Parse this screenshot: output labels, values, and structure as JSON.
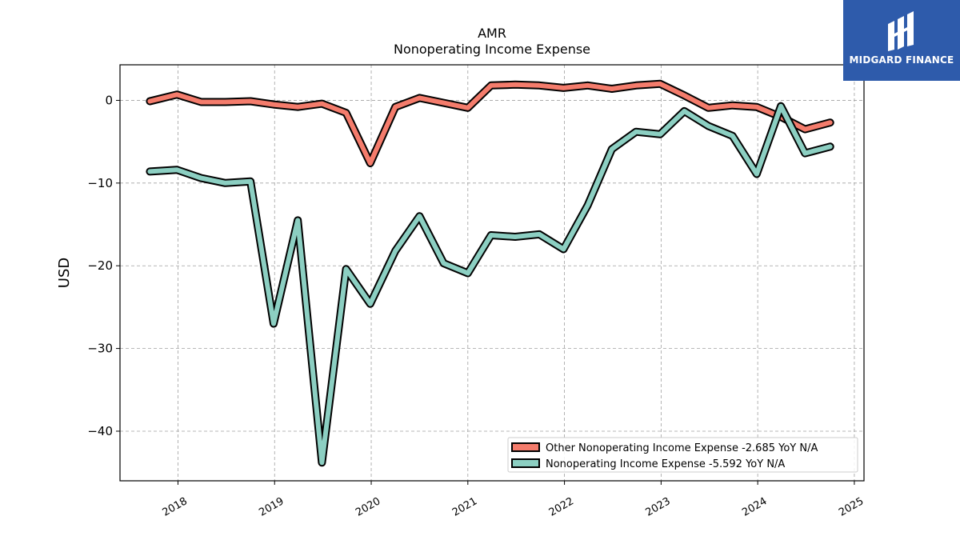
{
  "brand": {
    "name": "MIDGARD FINANCE",
    "bg": "#2e5bab"
  },
  "chart_data": {
    "type": "line",
    "title": "AMR",
    "subtitle": "Nonoperating Income Expense",
    "ylabel": "USD",
    "xlabel": "",
    "ylim": [
      -46,
      4.3
    ],
    "xlim": [
      2017.4,
      2025.1
    ],
    "yticks": [
      0,
      -10,
      -20,
      -30,
      -40
    ],
    "ytick_labels": [
      "0",
      "−10",
      "−20",
      "−30",
      "−40"
    ],
    "xticks": [
      2018,
      2019,
      2020,
      2021,
      2022,
      2023,
      2024,
      2025
    ],
    "xtick_labels": [
      "2018",
      "2019",
      "2020",
      "2021",
      "2022",
      "2023",
      "2024",
      "2025"
    ],
    "grid": true,
    "legend_position": "lower-right",
    "x": [
      2017.71,
      2017.99,
      2018.24,
      2018.49,
      2018.75,
      2018.99,
      2019.24,
      2019.49,
      2019.74,
      2019.99,
      2020.25,
      2020.5,
      2020.75,
      2021.0,
      2021.24,
      2021.49,
      2021.74,
      2021.99,
      2022.24,
      2022.49,
      2022.74,
      2022.99,
      2023.24,
      2023.49,
      2023.74,
      2023.99,
      2024.24,
      2024.49,
      2024.75
    ],
    "series": [
      {
        "name": "Other Nonoperating Income Expense",
        "legend_label": "Other Nonoperating Income Expense  -2.685 YoY N/A",
        "color": "#f47c6c",
        "values": [
          -0.1,
          0.7,
          -0.2,
          -0.2,
          -0.1,
          -0.5,
          -0.8,
          -0.4,
          -1.5,
          -7.6,
          -0.8,
          0.3,
          -0.3,
          -0.9,
          1.8,
          1.9,
          1.8,
          1.5,
          1.8,
          1.4,
          1.8,
          2.0,
          0.6,
          -0.9,
          -0.6,
          -0.8,
          -2.0,
          -3.5,
          -2.685
        ]
      },
      {
        "name": "Nonoperating Income Expense",
        "legend_label": "Nonoperating Income Expense  -5.592 YoY N/A",
        "color": "#8ccfc2",
        "values": [
          -8.6,
          -8.4,
          -9.4,
          -10.0,
          -9.8,
          -27.0,
          -14.5,
          -43.8,
          -20.4,
          -24.6,
          -18.2,
          -14.0,
          -19.7,
          -20.9,
          -16.3,
          -16.5,
          -16.2,
          -18.0,
          -12.7,
          -5.9,
          -3.8,
          -4.1,
          -1.3,
          -3.1,
          -4.3,
          -8.9,
          -0.7,
          -6.4,
          -5.592
        ]
      }
    ]
  }
}
